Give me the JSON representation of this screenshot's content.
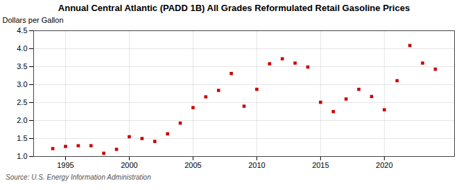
{
  "chart_data": {
    "type": "scatter",
    "title": "Annual Central Atlantic (PADD 1B) All Grades Reformulated Retail Gasoline Prices",
    "y_label": "Dollars per Gallon",
    "annotations": [
      "Source: U.S. Energy Information Administration"
    ],
    "x": [
      1994,
      1995,
      1996,
      1997,
      1998,
      1999,
      2000,
      2001,
      2002,
      2003,
      2004,
      2005,
      2006,
      2007,
      2008,
      2009,
      2010,
      2011,
      2012,
      2013,
      2014,
      2015,
      2016,
      2017,
      2018,
      2019,
      2020,
      2021,
      2022,
      2023,
      2024
    ],
    "values": [
      1.22,
      1.28,
      1.3,
      1.3,
      1.09,
      1.2,
      1.55,
      1.5,
      1.42,
      1.63,
      1.93,
      2.36,
      2.66,
      2.84,
      3.31,
      2.4,
      2.87,
      3.58,
      3.72,
      3.6,
      3.49,
      2.51,
      2.25,
      2.6,
      2.87,
      2.67,
      2.3,
      3.11,
      4.09,
      3.6,
      3.43
    ],
    "color": "#cc0000",
    "marker": "square",
    "xlim": [
      1992.5,
      2025.5
    ],
    "xticks": [
      1995,
      2000,
      2005,
      2010,
      2015,
      2020
    ],
    "ylim": [
      1.0,
      4.5
    ],
    "yticks": [
      {
        "value": 1.0,
        "label": "1.0"
      },
      1.5,
      {
        "value": 2.0,
        "label": "2.0"
      },
      2.5,
      {
        "value": 3.0,
        "label": "3.0"
      },
      3.5,
      {
        "value": 4.0,
        "label": "4.0"
      },
      4.5
    ],
    "grid": true
  }
}
